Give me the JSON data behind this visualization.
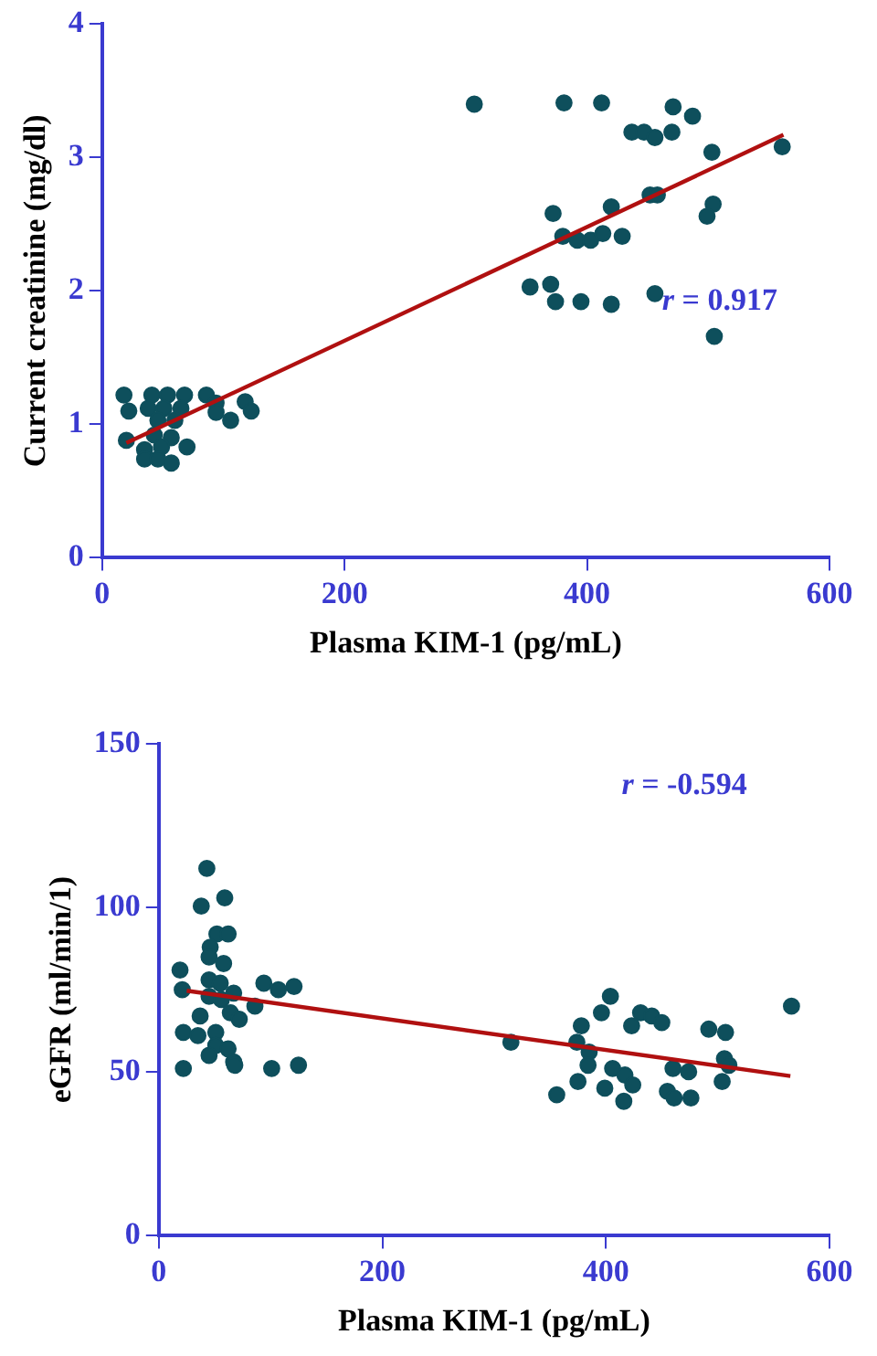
{
  "chart_data": [
    {
      "type": "scatter",
      "xlabel": "Plasma KIM-1 (pg/mL)",
      "ylabel": "Current creatinine (mg/dl)",
      "xlim": [
        0,
        600
      ],
      "xticks": [
        0,
        200,
        400,
        600
      ],
      "ylim": [
        0,
        4
      ],
      "yticks": [
        0,
        1,
        2,
        3,
        4
      ],
      "grid": false,
      "legend": false,
      "annotations": [
        "r = 0.917"
      ],
      "series": [
        {
          "marker": "circle",
          "color": "#0e4f5c",
          "x": [
            18,
            22,
            20,
            41,
            54,
            68,
            38,
            51,
            65,
            46,
            60,
            43,
            57,
            35,
            49,
            70,
            35,
            46,
            57,
            86,
            94,
            94,
            106,
            118,
            123,
            307,
            381,
            412,
            471,
            487,
            437,
            447,
            456,
            470,
            503,
            561,
            452,
            458,
            504,
            499,
            372,
            420,
            380,
            392,
            403,
            413,
            429,
            353,
            370,
            374,
            395,
            420,
            456,
            505
          ],
          "values": [
            1.22,
            1.1,
            0.88,
            1.22,
            1.22,
            1.22,
            1.12,
            1.12,
            1.12,
            1.03,
            1.03,
            0.92,
            0.9,
            0.81,
            0.83,
            0.83,
            0.74,
            0.74,
            0.71,
            1.22,
            1.16,
            1.09,
            1.03,
            1.17,
            1.1,
            3.4,
            3.41,
            3.41,
            3.38,
            3.31,
            3.19,
            3.19,
            3.15,
            3.19,
            3.04,
            3.08,
            2.72,
            2.72,
            2.65,
            2.56,
            2.58,
            2.63,
            2.41,
            2.38,
            2.38,
            2.43,
            2.41,
            2.03,
            2.05,
            1.92,
            1.92,
            1.9,
            1.98,
            1.66
          ]
        },
        {
          "type": "line",
          "marker": "none",
          "color": "#b01010",
          "x": [
            20,
            562
          ],
          "values": [
            0.86,
            3.17
          ]
        }
      ]
    },
    {
      "type": "scatter",
      "xlabel": "Plasma KIM-1 (pg/mL)",
      "ylabel": "eGFR (ml/min/1)",
      "xlim": [
        0,
        600
      ],
      "xticks": [
        0,
        200,
        400,
        600
      ],
      "ylim": [
        0,
        150
      ],
      "yticks": [
        0,
        50,
        100,
        150
      ],
      "grid": false,
      "legend": false,
      "annotations": [
        "r = -0.594"
      ],
      "series": [
        {
          "marker": "circle",
          "color": "#0e4f5c",
          "x": [
            43,
            38,
            59,
            52,
            62,
            46,
            45,
            58,
            19,
            21,
            45,
            55,
            45,
            56,
            67,
            94,
            107,
            121,
            37,
            64,
            72,
            86,
            22,
            35,
            51,
            51,
            62,
            45,
            67,
            22,
            101,
            125,
            68,
            566,
            404,
            396,
            431,
            441,
            450,
            378,
            423,
            492,
            507,
            315,
            374,
            385,
            384,
            406,
            417,
            424,
            460,
            474,
            506,
            510,
            504,
            375,
            356,
            399,
            416,
            455,
            461,
            476
          ],
          "values": [
            112,
            100.5,
            103,
            92,
            92,
            88,
            85,
            83,
            81,
            75,
            78,
            77,
            73,
            72,
            74,
            77,
            75,
            76,
            67,
            68,
            66,
            70,
            62,
            61,
            62,
            58,
            57,
            55,
            53,
            51,
            51,
            52,
            52,
            70,
            73,
            68,
            68,
            67,
            65,
            64,
            64,
            63,
            62,
            59,
            59,
            56,
            52,
            51,
            49,
            46,
            51,
            50,
            54,
            52,
            47,
            47,
            43,
            45,
            41,
            44,
            42,
            42
          ]
        },
        {
          "type": "line",
          "marker": "none",
          "color": "#b01010",
          "x": [
            25,
            565
          ],
          "values": [
            74.7,
            48.7
          ]
        }
      ]
    }
  ]
}
